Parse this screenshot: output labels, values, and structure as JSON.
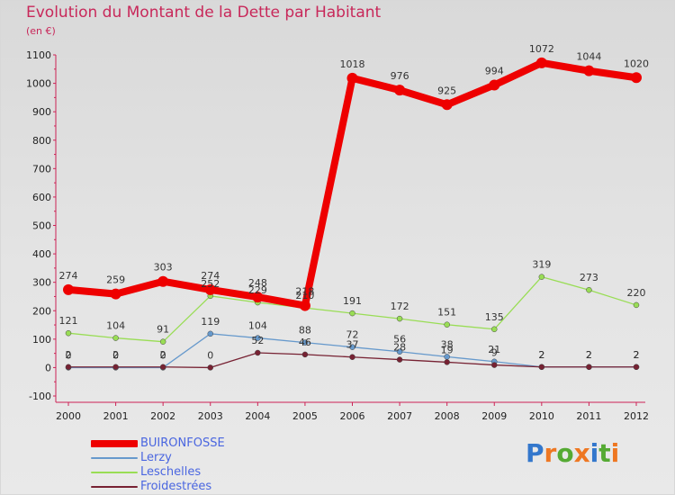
{
  "title": "Evolution du Montant de la Dette par Habitant",
  "subtitle": "(en €)",
  "chart_data": {
    "type": "line",
    "x": [
      "2000",
      "2001",
      "2002",
      "2003",
      "2004",
      "2005",
      "2006",
      "2007",
      "2008",
      "2009",
      "2010",
      "2011",
      "2012"
    ],
    "ylim": [
      -100,
      1100
    ],
    "yticks": [
      -100,
      0,
      100,
      200,
      300,
      400,
      500,
      600,
      700,
      800,
      900,
      1000,
      1100
    ],
    "grid": false,
    "legend_position": "bottom-left",
    "series": [
      {
        "name": "BUIRONFOSSE",
        "color": "#ee0000",
        "values": [
          274,
          259,
          303,
          274,
          248,
          218,
          1018,
          976,
          925,
          994,
          1072,
          1044,
          1020
        ]
      },
      {
        "name": "Lerzy",
        "color": "#6699cc",
        "values": [
          0,
          0,
          0,
          119,
          104,
          88,
          72,
          56,
          38,
          21,
          2,
          2,
          2
        ]
      },
      {
        "name": "Leschelles",
        "color": "#99dd55",
        "values": [
          121,
          104,
          91,
          252,
          229,
          210,
          191,
          172,
          151,
          135,
          319,
          273,
          220
        ]
      },
      {
        "name": "Froidestrées",
        "color": "#772233",
        "values": [
          2,
          2,
          2,
          0,
          52,
          46,
          37,
          28,
          19,
          9,
          2,
          2,
          2
        ]
      }
    ]
  },
  "logo": {
    "text": "Proxiti",
    "letters": [
      "P",
      "r",
      "o",
      "x",
      "i",
      "t",
      "i"
    ],
    "colors": [
      "#3377cc",
      "#ee7722",
      "#55aa33",
      "#ee7722",
      "#3377cc",
      "#55aa33",
      "#ee7722"
    ]
  }
}
